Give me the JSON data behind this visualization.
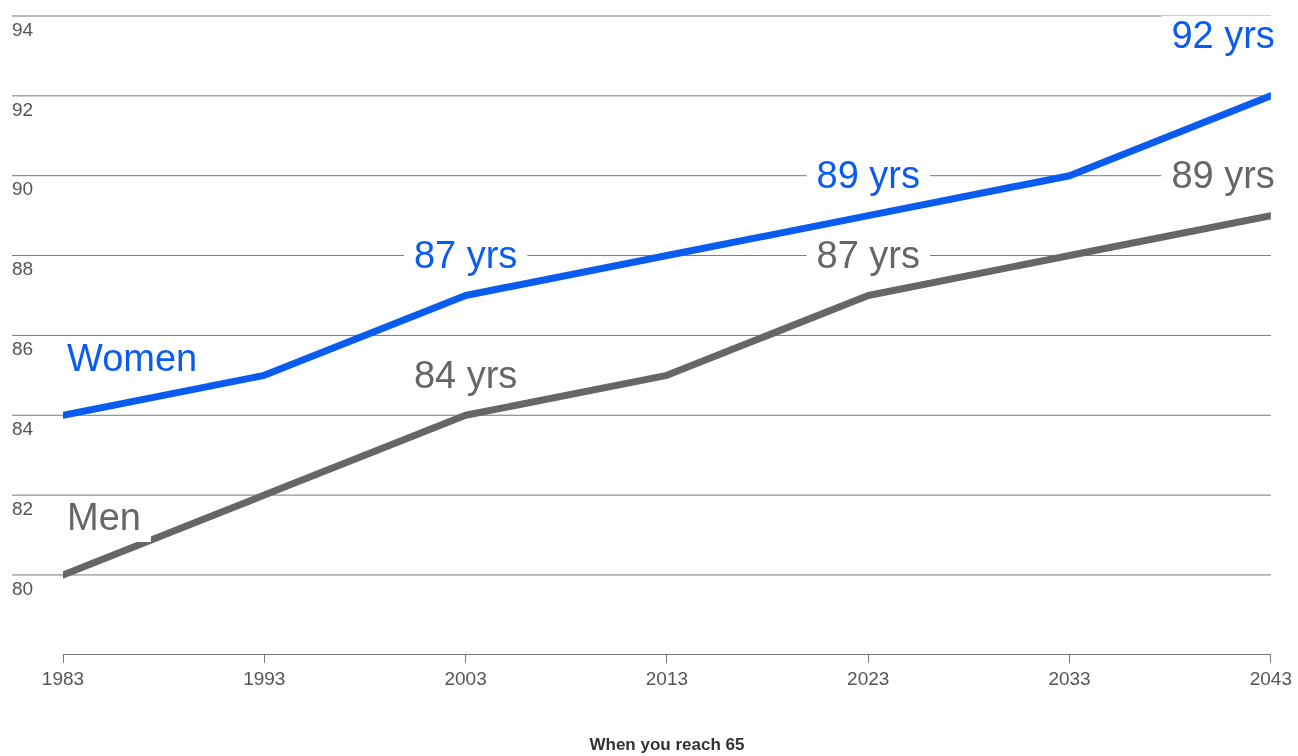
{
  "chart_data": {
    "type": "line",
    "xlabel": "When you reach 65",
    "x": [
      1983,
      1993,
      2003,
      2013,
      2023,
      2033,
      2043
    ],
    "series": [
      {
        "name": "Women",
        "color": "#0a5cf0",
        "values": [
          84,
          85,
          87,
          88,
          89,
          90,
          92
        ],
        "value_labels": [
          null,
          null,
          "87 yrs",
          null,
          "89 yrs",
          null,
          "92 yrs"
        ]
      },
      {
        "name": "Men",
        "color": "#666666",
        "values": [
          80,
          82,
          84,
          85,
          87,
          88,
          89
        ],
        "value_labels": [
          null,
          null,
          "84 yrs",
          null,
          "87 yrs",
          null,
          "89 yrs"
        ]
      }
    ],
    "xlim": [
      1983,
      2043
    ],
    "xticks": [
      1983,
      1993,
      2003,
      2013,
      2023,
      2033,
      2043
    ],
    "ylim": [
      78,
      94
    ],
    "yticks": [
      80,
      82,
      84,
      86,
      88,
      90,
      92,
      94
    ],
    "grid": "y",
    "marker": "none",
    "line_style": "solid"
  }
}
